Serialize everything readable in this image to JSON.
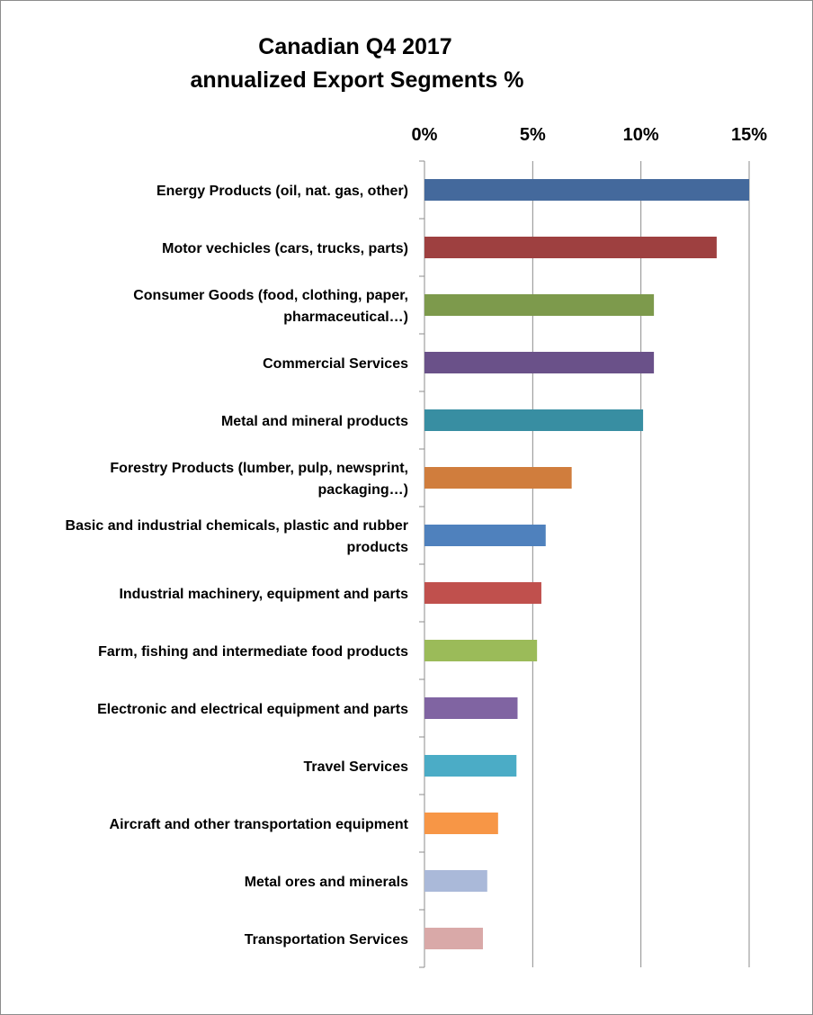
{
  "chart_data": {
    "type": "bar",
    "orientation": "horizontal",
    "title": [
      "Canadian Q4 2017",
      "annualized Export Segments %"
    ],
    "xlabel": "",
    "ylabel": "",
    "xlim": [
      0,
      15
    ],
    "x_axis_position": "top",
    "x_ticks": [
      "0%",
      "5%",
      "10%",
      "15%"
    ],
    "x_tick_values": [
      0,
      5,
      10,
      15
    ],
    "grid": true,
    "legend": "none",
    "categories": [
      [
        "Energy Products (oil, nat. gas, other)"
      ],
      [
        "Motor vechicles (cars, trucks, parts)"
      ],
      [
        "Consumer Goods (food, clothing, paper,",
        "pharmaceutical…)"
      ],
      [
        "Commercial Services"
      ],
      [
        "Metal and mineral products"
      ],
      [
        "Forestry Products (lumber, pulp, newsprint,",
        "packaging…)"
      ],
      [
        "Basic and industrial chemicals, plastic and rubber",
        "products"
      ],
      [
        "Industrial machinery, equipment and parts"
      ],
      [
        "Farm, fishing and intermediate food products"
      ],
      [
        "Electronic and electrical equipment and parts"
      ],
      [
        "Travel Services"
      ],
      [
        "Aircraft and other transportation equipment"
      ],
      [
        "Metal ores and minerals"
      ],
      [
        "Transportation Services"
      ]
    ],
    "values": [
      15.0,
      13.5,
      10.6,
      10.6,
      10.1,
      6.8,
      5.6,
      5.4,
      5.2,
      4.3,
      4.25,
      3.4,
      2.9,
      2.7
    ],
    "colors": [
      "#44699c",
      "#9e4040",
      "#7d9a4c",
      "#6a5189",
      "#388ea2",
      "#d07d3d",
      "#4f81bd",
      "#c0504d",
      "#9bbb59",
      "#8064a2",
      "#4bacc6",
      "#f79646",
      "#aab9d9",
      "#d9a9a8"
    ]
  }
}
